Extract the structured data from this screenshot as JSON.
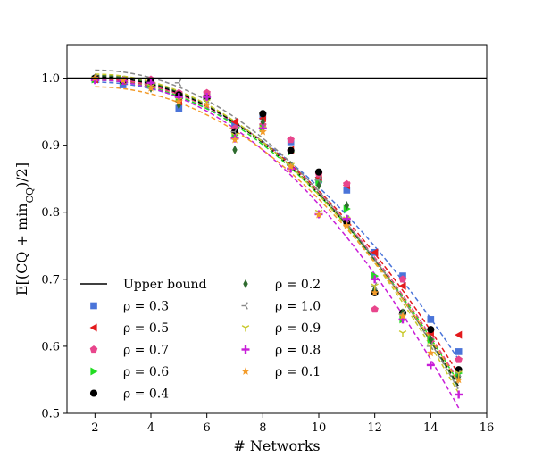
{
  "chart_data": {
    "type": "scatter",
    "xlabel": "# Networks",
    "ylabel": "E[(CQ + min_CQ)/2]",
    "xlim": [
      1,
      16
    ],
    "ylim": [
      0.5,
      1.05
    ],
    "xticks": [
      2,
      4,
      6,
      8,
      10,
      12,
      14,
      16
    ],
    "yticks": [
      0.5,
      0.6,
      0.7,
      0.8,
      0.9,
      1.0
    ],
    "tick_labels_x": [
      "2",
      "4",
      "6",
      "8",
      "10",
      "12",
      "14",
      "16"
    ],
    "tick_labels_y": [
      "0.5",
      "0.6",
      "0.7",
      "0.8",
      "0.9",
      "1.0"
    ],
    "legend_placement": "lower-left",
    "upper_bound": {
      "name": "Upper bound",
      "value": 1.0,
      "color": "#000000"
    },
    "x": [
      2,
      3,
      4,
      5,
      6,
      7,
      8,
      9,
      10,
      11,
      12,
      13,
      14,
      15
    ],
    "series": [
      {
        "name": "ρ = 0.3",
        "color": "#4a74d9",
        "marker": "square",
        "values": [
          0.998,
          0.99,
          0.995,
          0.955,
          0.975,
          0.93,
          0.943,
          0.905,
          0.848,
          0.833,
          0.74,
          0.705,
          0.64,
          0.592
        ],
        "fit": [
          2,
          0.994,
          15,
          0.58
        ]
      },
      {
        "name": "ρ = 0.5",
        "color": "#e31a1c",
        "marker": "triangle-left",
        "values": [
          0.998,
          0.996,
          0.992,
          0.965,
          0.975,
          0.935,
          0.94,
          0.893,
          0.852,
          0.84,
          0.74,
          0.69,
          0.62,
          0.617
        ],
        "fit": [
          2,
          0.999,
          15,
          0.558
        ]
      },
      {
        "name": "ρ = 0.7",
        "color": "#e8458c",
        "marker": "pentagon",
        "values": [
          1.0,
          0.995,
          0.998,
          0.978,
          0.978,
          0.925,
          0.93,
          0.908,
          0.857,
          0.842,
          0.655,
          0.7,
          0.61,
          0.58
        ],
        "fit": [
          2,
          1.0,
          15,
          0.548
        ]
      },
      {
        "name": "ρ = 0.6",
        "color": "#22dd22",
        "marker": "triangle-right",
        "values": [
          0.998,
          0.996,
          0.99,
          0.97,
          0.97,
          0.915,
          0.925,
          0.89,
          0.845,
          0.805,
          0.705,
          0.64,
          0.61,
          0.56
        ],
        "fit": [
          2,
          0.997,
          15,
          0.545
        ]
      },
      {
        "name": "ρ = 0.4",
        "color": "#000000",
        "marker": "circle",
        "values": [
          1.0,
          0.996,
          0.995,
          0.975,
          0.97,
          0.92,
          0.947,
          0.892,
          0.86,
          0.785,
          0.68,
          0.65,
          0.625,
          0.565
        ],
        "fit": [
          2,
          1.002,
          15,
          0.54
        ]
      },
      {
        "name": "ρ = 0.2",
        "color": "#2e6b2e",
        "marker": "diamond",
        "values": [
          1.0,
          0.997,
          0.985,
          0.96,
          0.968,
          0.893,
          0.935,
          0.87,
          0.84,
          0.81,
          0.685,
          0.65,
          0.61,
          0.555
        ],
        "fit": [
          2,
          1.004,
          15,
          0.538
        ]
      },
      {
        "name": "ρ = 1.0",
        "color": "#888888",
        "marker": "tri-left",
        "values": [
          1.0,
          0.997,
          0.99,
          0.993,
          0.968,
          0.92,
          0.925,
          0.87,
          0.848,
          0.79,
          0.69,
          0.648,
          0.6,
          0.56
        ],
        "fit": [
          2,
          1.012,
          15,
          0.535
        ]
      },
      {
        "name": "ρ = 0.9",
        "color": "#c8c82a",
        "marker": "tri-down",
        "values": [
          0.998,
          0.996,
          0.988,
          0.968,
          0.965,
          0.915,
          0.925,
          0.87,
          0.8,
          0.79,
          0.69,
          0.62,
          0.6,
          0.56
        ],
        "fit": [
          2,
          1.006,
          15,
          0.53
        ]
      },
      {
        "name": "ρ = 0.8",
        "color": "#c81ed8",
        "marker": "plus",
        "values": [
          0.997,
          0.996,
          0.993,
          0.972,
          0.972,
          0.91,
          0.925,
          0.865,
          0.797,
          0.79,
          0.7,
          0.64,
          0.572,
          0.528
        ],
        "fit": [
          2,
          0.997,
          15,
          0.508
        ]
      },
      {
        "name": "ρ = 0.1",
        "color": "#f39c2b",
        "marker": "star",
        "values": [
          1.0,
          0.997,
          0.985,
          0.965,
          0.96,
          0.908,
          0.92,
          0.868,
          0.796,
          0.78,
          0.68,
          0.645,
          0.59,
          0.55
        ],
        "fit": [
          2,
          0.987,
          15,
          0.545
        ]
      }
    ]
  }
}
